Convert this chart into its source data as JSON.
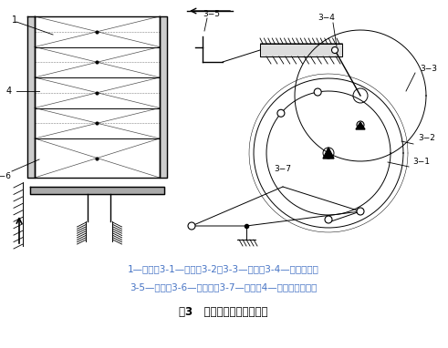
{
  "title": "图3   顶升输出机构原理简图",
  "legend_line1": "1—烟包；3-1—凸轮；3-2、3-3—齿轮；3-4—曲柄滑块；",
  "legend_line2": "3-5—推手；3-6—顶升板；3-7—连杆；4—烟包提升通道。",
  "bg_color": "#ffffff",
  "line_color": "#000000",
  "text_color": "#000000",
  "legend_color": "#4472C4",
  "figsize": [
    4.91,
    3.82
  ],
  "dpi": 100
}
